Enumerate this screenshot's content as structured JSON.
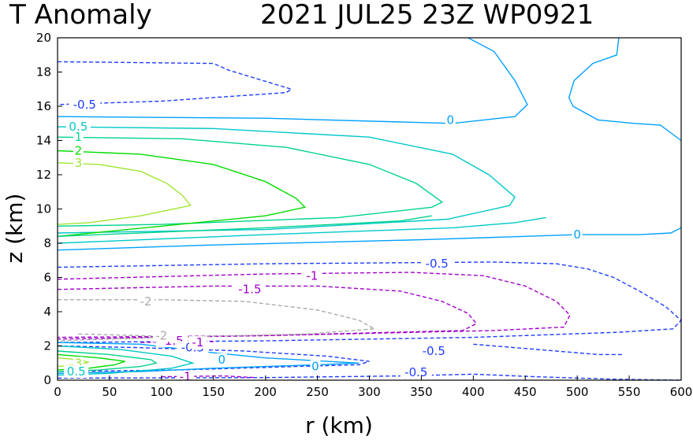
{
  "chart_data": {
    "type": "contour",
    "title_left": "T Anomaly",
    "title_right": "2021  JUL25  23Z   WP0921",
    "xlabel": "r (km)",
    "ylabel": "z (km)",
    "xlim": [
      0,
      600
    ],
    "ylim": [
      0,
      20
    ],
    "xticks": [
      0,
      50,
      100,
      150,
      200,
      250,
      300,
      350,
      400,
      450,
      500,
      550,
      600
    ],
    "yticks": [
      0,
      2,
      4,
      6,
      8,
      10,
      12,
      14,
      16,
      18,
      20
    ],
    "levels": [
      {
        "level": "-2",
        "color": "#aaaaaa",
        "dashed": true
      },
      {
        "level": "-1.5",
        "color": "#a000c8",
        "dashed": true
      },
      {
        "level": "-1",
        "color": "#a000c8",
        "dashed": true
      },
      {
        "level": "-0.5",
        "color": "#1e3cff",
        "dashed": true
      },
      {
        "level": "0",
        "color": "#00a0ff",
        "dashed": false
      },
      {
        "level": "0.5",
        "color": "#00c8c8",
        "dashed": false
      },
      {
        "level": "1",
        "color": "#00d28c",
        "dashed": false
      },
      {
        "level": "2",
        "color": "#00dc00",
        "dashed": false
      },
      {
        "level": "3",
        "color": "#a0e632",
        "dashed": false
      }
    ],
    "contours": [
      {
        "level": "-0.5",
        "color": "#1e3cff",
        "dashed": true,
        "points": [
          [
            0,
            18.6
          ],
          [
            150,
            18.5
          ],
          [
            165,
            18.1
          ],
          [
            225,
            17.0
          ],
          [
            220,
            16.8
          ],
          [
            100,
            16.3
          ],
          [
            0,
            16.1
          ]
        ]
      },
      {
        "level": "0",
        "color": "#00a0ff",
        "dashed": false,
        "points": [
          [
            0,
            15.4
          ],
          [
            200,
            15.3
          ],
          [
            380,
            15.0
          ],
          [
            440,
            15.4
          ],
          [
            452,
            16.1
          ],
          [
            440,
            17.5
          ],
          [
            420,
            19.2
          ],
          [
            395,
            20.0
          ]
        ]
      },
      {
        "level": "0",
        "color": "#00a0ff",
        "dashed": false,
        "points": [
          [
            540,
            20.0
          ],
          [
            538,
            19.0
          ],
          [
            515,
            18.5
          ],
          [
            497,
            17.5
          ],
          [
            492,
            16.5
          ],
          [
            496,
            16.0
          ],
          [
            520,
            15.2
          ],
          [
            555,
            15.0
          ],
          [
            580,
            14.9
          ],
          [
            600,
            14.0
          ]
        ]
      },
      {
        "level": "0.5",
        "color": "#00c8c8",
        "dashed": false,
        "points": [
          [
            0,
            14.8
          ],
          [
            150,
            14.7
          ],
          [
            300,
            14.2
          ],
          [
            380,
            13.2
          ],
          [
            415,
            12.0
          ],
          [
            440,
            10.7
          ],
          [
            435,
            10.2
          ],
          [
            375,
            9.4
          ],
          [
            200,
            8.8
          ],
          [
            0,
            8.6
          ]
        ]
      },
      {
        "level": "1",
        "color": "#00d28c",
        "dashed": false,
        "points": [
          [
            0,
            14.2
          ],
          [
            120,
            14.1
          ],
          [
            220,
            13.6
          ],
          [
            300,
            12.6
          ],
          [
            345,
            11.5
          ],
          [
            370,
            10.4
          ],
          [
            360,
            10.1
          ],
          [
            270,
            9.5
          ],
          [
            100,
            9.1
          ],
          [
            0,
            9.0
          ]
        ]
      },
      {
        "level": "2",
        "color": "#00dc00",
        "dashed": false,
        "points": [
          [
            0,
            13.4
          ],
          [
            80,
            13.2
          ],
          [
            150,
            12.6
          ],
          [
            200,
            11.6
          ],
          [
            230,
            10.6
          ],
          [
            238,
            10.1
          ],
          [
            200,
            9.6
          ],
          [
            100,
            9.0
          ],
          [
            0,
            8.4
          ]
        ]
      },
      {
        "level": "3",
        "color": "#a0e632",
        "dashed": false,
        "points": [
          [
            0,
            12.7
          ],
          [
            40,
            12.6
          ],
          [
            80,
            12.2
          ],
          [
            105,
            11.5
          ],
          [
            120,
            10.8
          ],
          [
            128,
            10.2
          ],
          [
            80,
            9.6
          ],
          [
            30,
            9.2
          ],
          [
            0,
            9.1
          ]
        ]
      },
      {
        "level": "0",
        "color": "#00a0ff",
        "dashed": false,
        "points": [
          [
            0,
            7.6
          ],
          [
            150,
            7.9
          ],
          [
            350,
            8.2
          ],
          [
            500,
            8.5
          ],
          [
            560,
            8.5
          ],
          [
            590,
            8.6
          ],
          [
            600,
            8.9
          ]
        ]
      },
      {
        "level": "0.5",
        "color": "#00c8c8",
        "dashed": false,
        "points": [
          [
            0,
            8.0
          ],
          [
            200,
            8.5
          ],
          [
            380,
            8.9
          ],
          [
            440,
            9.2
          ],
          [
            470,
            9.5
          ]
        ]
      },
      {
        "level": "1",
        "color": "#00d28c",
        "dashed": false,
        "points": [
          [
            0,
            8.4
          ],
          [
            200,
            8.9
          ],
          [
            330,
            9.3
          ],
          [
            360,
            9.6
          ]
        ]
      },
      {
        "level": "-0.5",
        "color": "#1e3cff",
        "dashed": true,
        "points": [
          [
            0,
            6.6
          ],
          [
            200,
            6.8
          ],
          [
            420,
            6.9
          ],
          [
            480,
            6.8
          ],
          [
            510,
            6.5
          ],
          [
            535,
            6.0
          ],
          [
            560,
            5.2
          ],
          [
            585,
            4.3
          ],
          [
            600,
            3.5
          ],
          [
            592,
            3.0
          ],
          [
            540,
            2.8
          ],
          [
            400,
            2.5
          ],
          [
            200,
            2.3
          ],
          [
            0,
            2.2
          ]
        ]
      },
      {
        "level": "-1",
        "color": "#a000c8",
        "dashed": true,
        "points": [
          [
            0,
            5.9
          ],
          [
            200,
            6.2
          ],
          [
            340,
            6.3
          ],
          [
            410,
            6.1
          ],
          [
            450,
            5.5
          ],
          [
            480,
            4.6
          ],
          [
            493,
            3.8
          ],
          [
            487,
            3.1
          ],
          [
            420,
            2.9
          ],
          [
            200,
            2.6
          ],
          [
            0,
            2.5
          ]
        ]
      },
      {
        "level": "-1.5",
        "color": "#a000c8",
        "dashed": true,
        "points": [
          [
            0,
            5.3
          ],
          [
            150,
            5.5
          ],
          [
            250,
            5.5
          ],
          [
            330,
            5.2
          ],
          [
            370,
            4.6
          ],
          [
            395,
            3.9
          ],
          [
            403,
            3.3
          ],
          [
            390,
            2.9
          ],
          [
            200,
            2.6
          ],
          [
            0,
            2.4
          ]
        ]
      },
      {
        "level": "-2",
        "color": "#aaaaaa",
        "dashed": true,
        "points": [
          [
            0,
            4.7
          ],
          [
            100,
            4.7
          ],
          [
            180,
            4.6
          ],
          [
            250,
            4.1
          ],
          [
            290,
            3.5
          ],
          [
            305,
            3.0
          ],
          [
            240,
            2.7
          ],
          [
            100,
            2.5
          ],
          [
            0,
            2.3
          ]
        ]
      },
      {
        "level": "-0.5",
        "color": "#1e3cff",
        "dashed": true,
        "points": [
          [
            0,
            2.0
          ],
          [
            80,
            1.9
          ],
          [
            180,
            1.7
          ],
          [
            260,
            1.4
          ],
          [
            300,
            1.1
          ],
          [
            290,
            0.9
          ],
          [
            230,
            0.8
          ],
          [
            120,
            0.6
          ],
          [
            0,
            0.5
          ]
        ]
      },
      {
        "level": "0",
        "color": "#00a0ff",
        "dashed": false,
        "points": [
          [
            0,
            2.2
          ],
          [
            80,
            2.1
          ],
          [
            150,
            1.6
          ],
          [
            200,
            1.3
          ],
          [
            290,
            1.0
          ],
          [
            250,
            0.9
          ],
          [
            150,
            0.7
          ],
          [
            80,
            0.5
          ],
          [
            0,
            0.4
          ]
        ]
      },
      {
        "level": "0.5",
        "color": "#00c8c8",
        "dashed": false,
        "points": [
          [
            0,
            2.0
          ],
          [
            60,
            1.8
          ],
          [
            110,
            1.4
          ],
          [
            130,
            1.0
          ],
          [
            110,
            0.7
          ],
          [
            50,
            0.4
          ],
          [
            0,
            0.3
          ]
        ]
      },
      {
        "level": "1",
        "color": "#00d28c",
        "dashed": false,
        "points": [
          [
            0,
            1.7
          ],
          [
            50,
            1.5
          ],
          [
            90,
            1.2
          ],
          [
            95,
            1.0
          ],
          [
            80,
            0.8
          ],
          [
            40,
            0.6
          ],
          [
            0,
            0.5
          ]
        ]
      },
      {
        "level": "2",
        "color": "#00dc00",
        "dashed": false,
        "points": [
          [
            0,
            1.5
          ],
          [
            40,
            1.3
          ],
          [
            65,
            1.1
          ],
          [
            55,
            0.9
          ],
          [
            30,
            0.7
          ],
          [
            0,
            0.6
          ]
        ]
      },
      {
        "level": "3",
        "color": "#a0e632",
        "dashed": false,
        "points": [
          [
            0,
            1.3
          ],
          [
            20,
            1.2
          ],
          [
            30,
            1.05
          ],
          [
            20,
            0.9
          ],
          [
            0,
            0.8
          ]
        ]
      },
      {
        "level": "-0.5",
        "color": "#1e3cff",
        "dashed": true,
        "points": [
          [
            0,
            0.12
          ],
          [
            200,
            0.15
          ],
          [
            330,
            0.25
          ],
          [
            400,
            0.35
          ],
          [
            460,
            0.2
          ],
          [
            540,
            0.05
          ],
          [
            600,
            0.0
          ]
        ]
      },
      {
        "level": "-1",
        "color": "#a000c8",
        "dashed": true,
        "points": [
          [
            100,
            0.2
          ],
          [
            160,
            0.25
          ],
          [
            190,
            0.15
          ]
        ]
      },
      {
        "level": "-1.5",
        "color": "#a000c8",
        "dashed": true,
        "points": [
          [
            80,
            2.2
          ],
          [
            110,
            2.25
          ],
          [
            150,
            2.25
          ]
        ]
      },
      {
        "level": "-2",
        "color": "#aaaaaa",
        "dashed": true,
        "points": [
          [
            20,
            2.7
          ],
          [
            80,
            2.6
          ],
          [
            130,
            2.5
          ]
        ]
      },
      {
        "level": "-0.5",
        "color": "#1e3cff",
        "dashed": true,
        "points": [
          [
            400,
            2.1
          ],
          [
            480,
            1.7
          ],
          [
            520,
            1.5
          ],
          [
            545,
            1.5
          ]
        ]
      }
    ],
    "labels": [
      {
        "text": "-0.5",
        "x": 26,
        "y": 16.1,
        "color": "#1e3cff"
      },
      {
        "text": "0",
        "x": 378,
        "y": 15.2,
        "color": "#00a0ff"
      },
      {
        "text": "0.5",
        "x": 20,
        "y": 14.8,
        "color": "#00c8c8"
      },
      {
        "text": "1",
        "x": 20,
        "y": 14.2,
        "color": "#00d28c"
      },
      {
        "text": "2",
        "x": 20,
        "y": 13.4,
        "color": "#00dc00"
      },
      {
        "text": "3",
        "x": 20,
        "y": 12.7,
        "color": "#a0e632"
      },
      {
        "text": "0",
        "x": 500,
        "y": 8.5,
        "color": "#00a0ff"
      },
      {
        "text": "-0.5",
        "x": 365,
        "y": 6.8,
        "color": "#1e3cff"
      },
      {
        "text": "-1",
        "x": 245,
        "y": 6.1,
        "color": "#a000c8"
      },
      {
        "text": "-1.5",
        "x": 185,
        "y": 5.3,
        "color": "#a000c8"
      },
      {
        "text": "-2",
        "x": 85,
        "y": 4.6,
        "color": "#aaaaaa"
      },
      {
        "text": "-1.5",
        "x": 110,
        "y": 2.3,
        "color": "#a000c8"
      },
      {
        "text": "-0.5",
        "x": 130,
        "y": 1.9,
        "color": "#1e3cff"
      },
      {
        "text": "0",
        "x": 158,
        "y": 1.2,
        "color": "#00a0ff"
      },
      {
        "text": "0",
        "x": 248,
        "y": 0.8,
        "color": "#00a0ff"
      },
      {
        "text": "-0.5",
        "x": 362,
        "y": 1.7,
        "color": "#1e3cff"
      },
      {
        "text": "-0.5",
        "x": 345,
        "y": 0.45,
        "color": "#1e3cff"
      },
      {
        "text": "-1",
        "x": 123,
        "y": 0.2,
        "color": "#a000c8"
      },
      {
        "text": "-1",
        "x": 135,
        "y": 2.2,
        "color": "#a000c8"
      },
      {
        "text": "3",
        "x": 20,
        "y": 1.0,
        "color": "#a0e632"
      },
      {
        "text": "0.5",
        "x": 18,
        "y": 0.5,
        "color": "#00c8c8"
      },
      {
        "text": "-2",
        "x": 100,
        "y": 2.6,
        "color": "#aaaaaa"
      }
    ]
  }
}
